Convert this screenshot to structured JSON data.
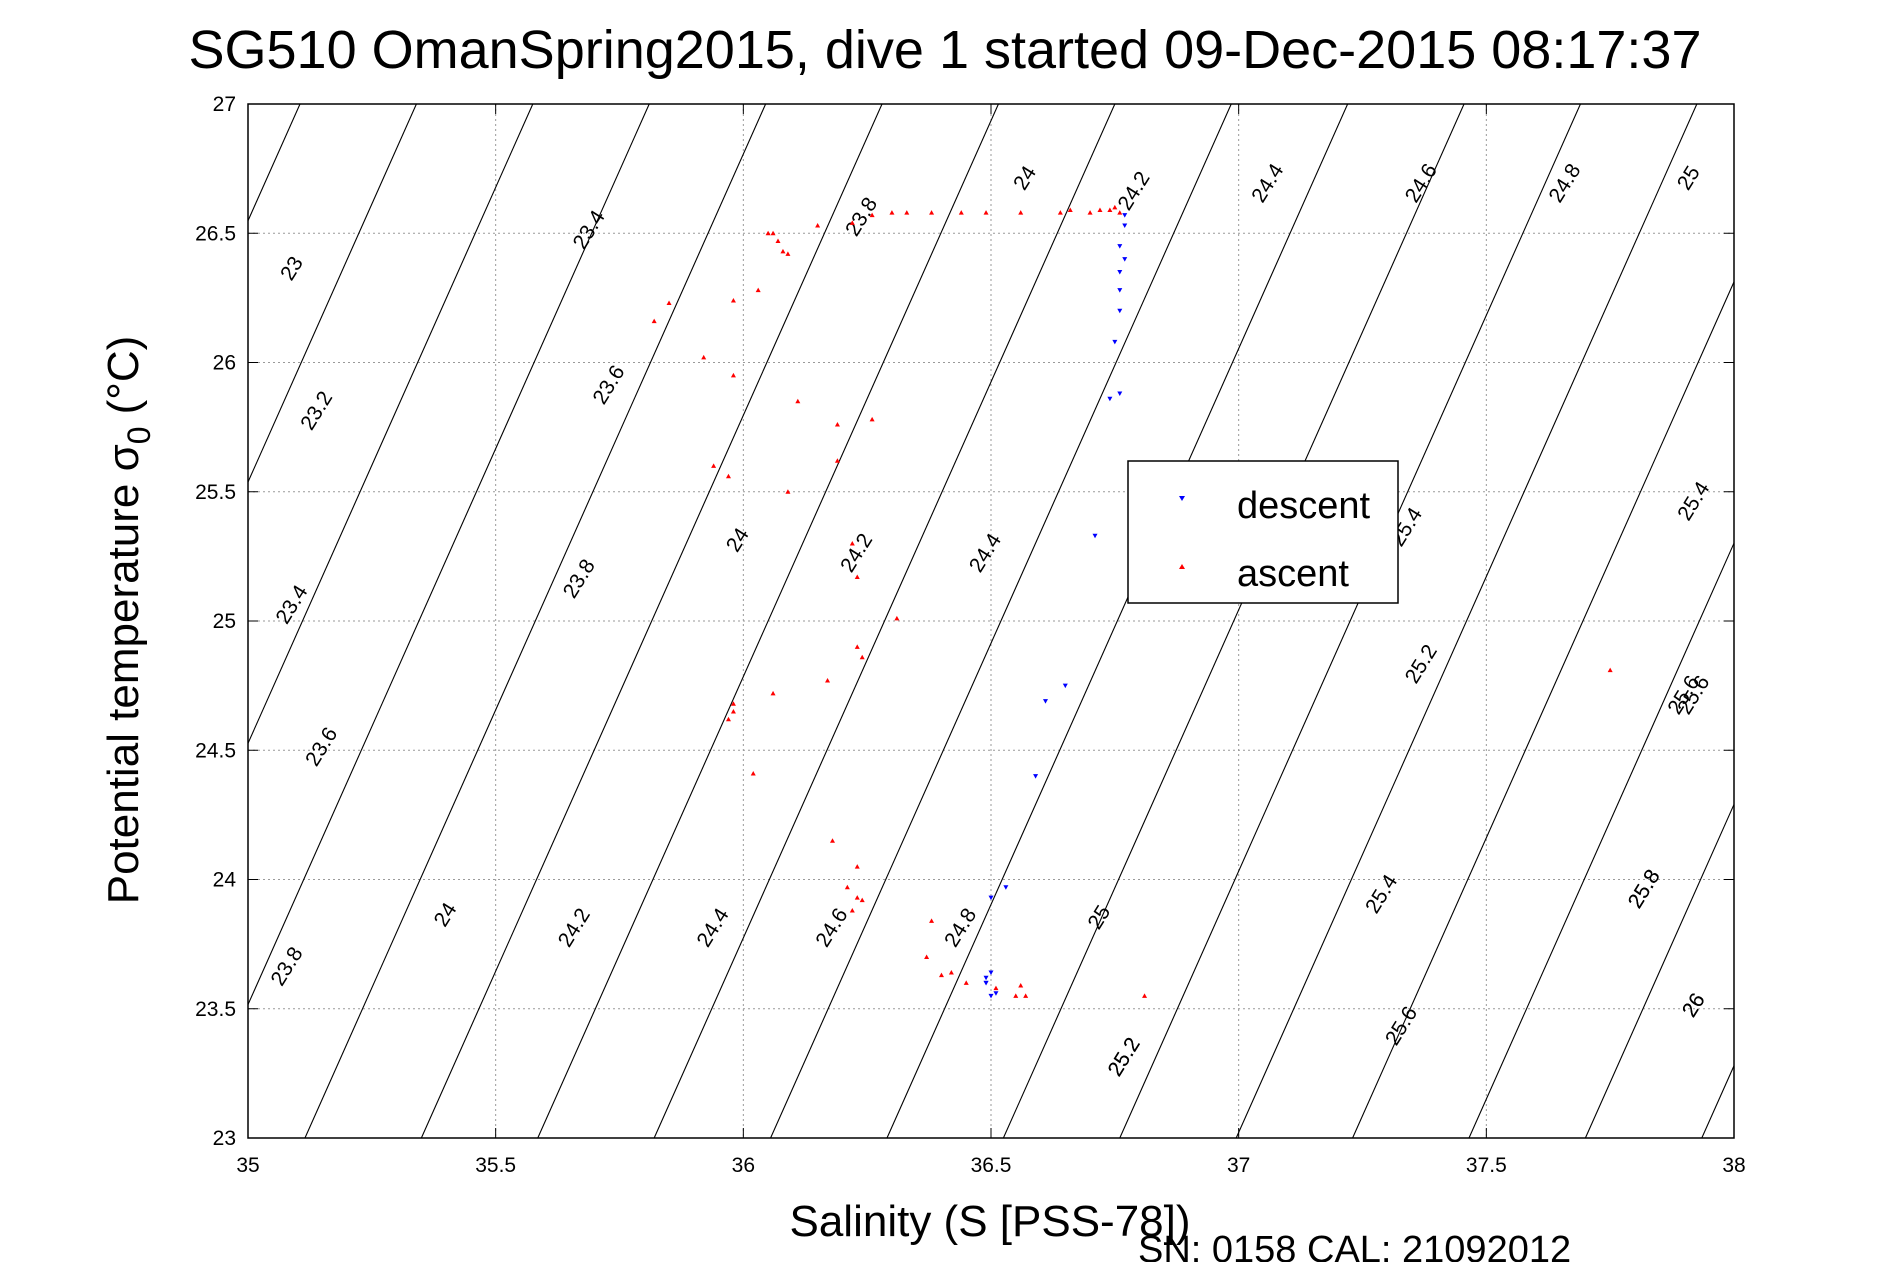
{
  "chart_data": {
    "type": "scatter",
    "title": "SG510 OmanSpring2015, dive 1 started 09-Dec-2015 08:17:37",
    "xlabel": "Salinity (S [PSS-78])",
    "ylabel_main": "Potential temperature σ",
    "ylabel_sub": "0",
    "ylabel_unit": "(°C)",
    "xlim": [
      35,
      38
    ],
    "ylim": [
      23,
      27
    ],
    "xticks": [
      "35",
      "35.5",
      "36",
      "36.5",
      "37",
      "37.5",
      "38"
    ],
    "yticks": [
      "23",
      "23.5",
      "24",
      "24.5",
      "25",
      "25.5",
      "26",
      "26.5",
      "27"
    ],
    "grid": true,
    "legend_position": "right",
    "footer": "SN: 0158  CAL: 21092012",
    "colors": {
      "descent": "#0000ff",
      "ascent": "#ff0000",
      "axis": "#000000",
      "grid": "#9a9a9a"
    },
    "contour_labels": [
      "23",
      "23.2",
      "23.4",
      "23.6",
      "23.8",
      "23.4",
      "23.6",
      "23.8",
      "24",
      "24.2",
      "24.4",
      "23.8",
      "24",
      "24.2",
      "24.4",
      "24.6",
      "24.8",
      "25",
      "24",
      "24.2",
      "24.4",
      "24.6",
      "24.8",
      "25",
      "25.2",
      "25.4",
      "25.6",
      "25.2",
      "25.4",
      "25.6",
      "25.8",
      "26",
      "25.2",
      "25.4",
      "25.6",
      "25.8",
      "26"
    ],
    "contour_lines": 30,
    "series": [
      {
        "name": "descent",
        "marker": "triangle-down",
        "x": [
          36.77,
          36.77,
          36.76,
          36.77,
          36.76,
          36.76,
          36.76,
          36.75,
          36.76,
          36.74,
          36.71,
          36.65,
          36.61,
          36.59,
          36.53,
          36.5,
          36.49,
          36.49,
          36.5,
          36.51,
          36.5,
          36.49
        ],
        "y": [
          26.57,
          26.53,
          26.45,
          26.4,
          26.35,
          26.28,
          26.2,
          26.08,
          25.88,
          25.86,
          25.33,
          24.75,
          24.69,
          24.4,
          23.97,
          23.93,
          23.62,
          23.6,
          23.64,
          23.56,
          23.55,
          23.6
        ]
      },
      {
        "name": "ascent",
        "marker": "triangle-up",
        "x": [
          36.74,
          36.75,
          36.76,
          36.72,
          36.7,
          36.66,
          36.64,
          36.56,
          36.49,
          36.44,
          36.38,
          36.33,
          36.3,
          36.26,
          36.22,
          36.15,
          36.06,
          36.05,
          36.07,
          36.08,
          36.09,
          36.03,
          35.98,
          35.85,
          35.82,
          35.92,
          35.98,
          36.11,
          36.19,
          36.19,
          36.26,
          35.94,
          35.97,
          36.09,
          36.22,
          36.23,
          36.31,
          36.23,
          36.24,
          36.17,
          36.06,
          35.98,
          35.98,
          35.97,
          36.02,
          36.18,
          36.21,
          36.23,
          36.23,
          36.22,
          36.24,
          36.38,
          36.37,
          36.4,
          36.42,
          36.45,
          36.51,
          36.55,
          36.57,
          36.56,
          36.81,
          37.75
        ],
        "y": [
          26.59,
          26.6,
          26.58,
          26.59,
          26.58,
          26.59,
          26.58,
          26.58,
          26.58,
          26.58,
          26.58,
          26.58,
          26.58,
          26.57,
          26.54,
          26.53,
          26.5,
          26.5,
          26.47,
          26.43,
          26.42,
          26.28,
          26.24,
          26.23,
          26.16,
          26.02,
          25.95,
          25.85,
          25.76,
          25.62,
          25.78,
          25.6,
          25.56,
          25.5,
          25.3,
          25.17,
          25.01,
          24.9,
          24.86,
          24.77,
          24.72,
          24.68,
          24.65,
          24.62,
          24.41,
          24.15,
          23.97,
          23.93,
          24.05,
          23.88,
          23.92,
          23.84,
          23.7,
          23.63,
          23.64,
          23.6,
          23.58,
          23.55,
          23.55,
          23.59,
          23.55,
          24.81
        ]
      }
    ]
  }
}
